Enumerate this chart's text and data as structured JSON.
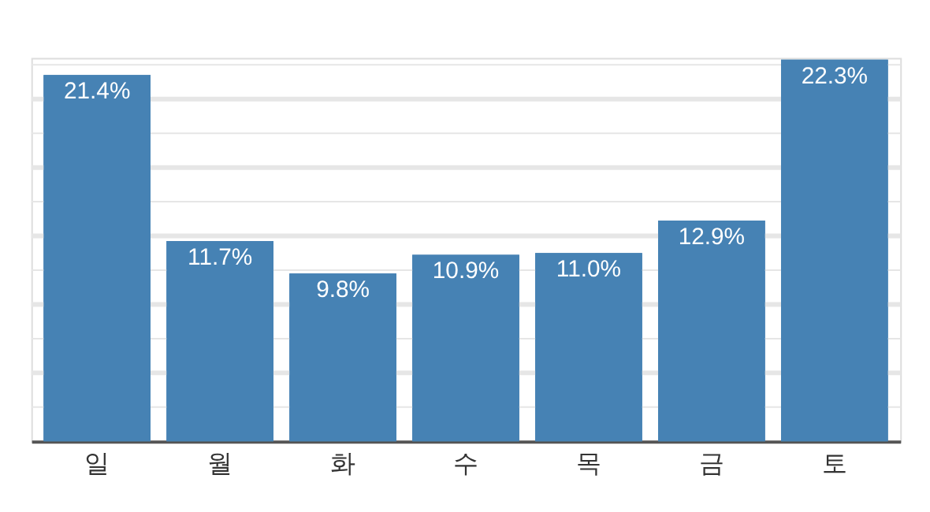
{
  "chart_data": {
    "type": "bar",
    "categories": [
      "일",
      "월",
      "화",
      "수",
      "목",
      "금",
      "토"
    ],
    "values": [
      21.4,
      11.7,
      9.8,
      10.9,
      11.0,
      12.9,
      22.3
    ],
    "value_labels": [
      "21.4%",
      "11.7%",
      "9.8%",
      "10.9%",
      "11.0%",
      "12.9%",
      "22.3%"
    ],
    "color": "#4682b4",
    "ylim": [
      0,
      22.4
    ],
    "yticks": [
      {
        "value": 2,
        "label": null
      },
      {
        "value": 4,
        "label": null
      },
      {
        "value": 6,
        "label": null
      },
      {
        "value": 8,
        "label": null
      },
      {
        "value": 10,
        "label": null
      },
      {
        "value": 12,
        "label": null
      },
      {
        "value": 14,
        "label": null
      },
      {
        "value": 16,
        "label": null
      },
      {
        "value": 18,
        "label": null
      },
      {
        "value": 20,
        "label": null
      },
      {
        "value": 22,
        "label": null
      }
    ],
    "tick_labels": "x",
    "grid": "y"
  }
}
